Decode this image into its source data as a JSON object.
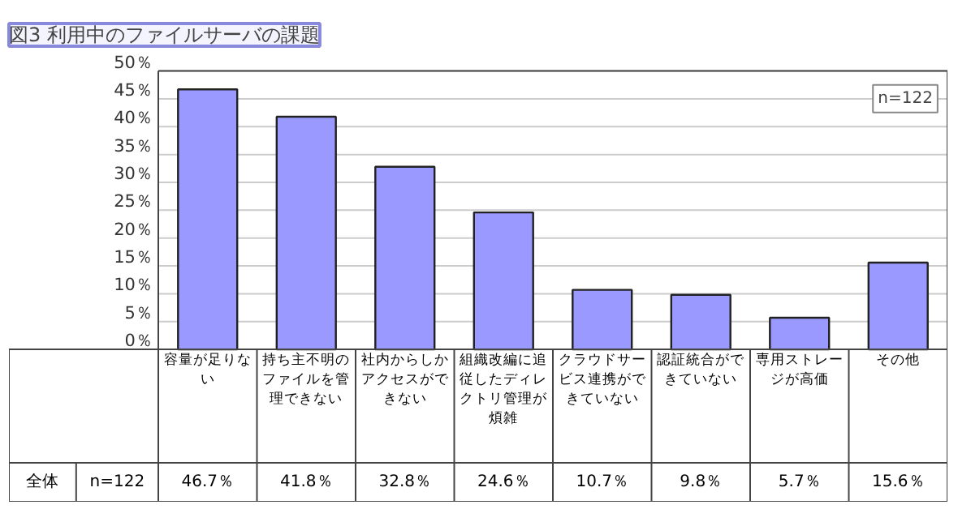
{
  "chart_data": {
    "type": "bar",
    "title": "図3 利用中のファイルサーバの課題",
    "categories": [
      "容量が足りない",
      "持ち主不明のファイルを管理できない",
      "社内からしかアクセスができない",
      "組織改編に追従したディレクトリ管理が煩雑",
      "クラウドサービス連携ができていない",
      "認証統合ができていない",
      "専用ストレージが高価",
      "その他"
    ],
    "values": [
      46.7,
      41.8,
      32.8,
      24.6,
      10.7,
      9.8,
      5.7,
      15.6
    ],
    "value_labels": [
      "46.7％",
      "41.8％",
      "32.8％",
      "24.6％",
      "10.7％",
      "9.8％",
      "5.7％",
      "15.6％"
    ],
    "color": "#9999ff",
    "ylim": [
      0,
      50
    ],
    "yticks": [
      {
        "value": 0,
        "label": "0％"
      },
      {
        "value": 5,
        "label": "5％"
      },
      {
        "value": 10,
        "label": "10％"
      },
      {
        "value": 15,
        "label": "15％"
      },
      {
        "value": 20,
        "label": "20％"
      },
      {
        "value": 25,
        "label": "25％"
      },
      {
        "value": 30,
        "label": "30％"
      },
      {
        "value": 35,
        "label": "35％"
      },
      {
        "value": 40,
        "label": "40％"
      },
      {
        "value": 45,
        "label": "45％"
      },
      {
        "value": 50,
        "label": "50％"
      }
    ],
    "grid": "y",
    "annotations": [
      "n=122",
      "全体",
      "n=122"
    ]
  }
}
